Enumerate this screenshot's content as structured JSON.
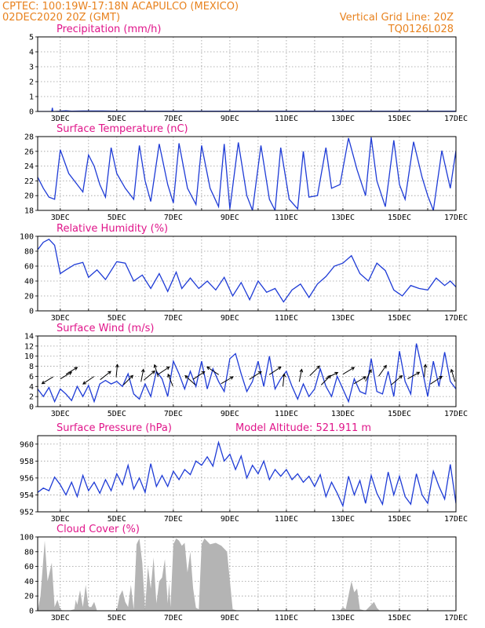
{
  "header": {
    "line1": "CPTEC:   100:19W-17:18N  ACAPULCO (MEXICO)",
    "line2": "02DEC2020 20Z (GMT)",
    "grid_note": "Vertical Grid Line: 20Z",
    "code": "TQ0126L028"
  },
  "colors": {
    "header": "#e8821e",
    "title": "#e0158a",
    "line": "#1e3bd6",
    "fill": "#b4b4b4",
    "arrow": "#000000"
  },
  "x_axis": {
    "labels": [
      "3DEC",
      "5DEC",
      "7DEC",
      "9DEC",
      "11DEC",
      "13DEC",
      "15DEC",
      "17DEC"
    ],
    "label_days": [
      3,
      5,
      7,
      9,
      11,
      13,
      15,
      17
    ],
    "range_days": [
      2.2,
      17
    ]
  },
  "chart_data": [
    {
      "type": "line",
      "title": "Precipitation (mm/h)",
      "ylim": [
        0,
        5
      ],
      "yticks": [
        "0",
        "1",
        "2",
        "3",
        "4",
        "5"
      ],
      "x": [
        2.2,
        2.7,
        2.72,
        2.74,
        2.8,
        3.2,
        3.4,
        3.8,
        4.5,
        5.0,
        6.0,
        7.0,
        8.0,
        9.0,
        10.0,
        11.0,
        12.0,
        13.0,
        14.0,
        15.0,
        16.0,
        17.0
      ],
      "y": [
        0,
        0,
        0.25,
        0,
        0,
        0.05,
        0.02,
        0.03,
        0.03,
        0.02,
        0.02,
        0.02,
        0.02,
        0.02,
        0.02,
        0.02,
        0.02,
        0.02,
        0.02,
        0.02,
        0.02,
        0.02
      ]
    },
    {
      "type": "line",
      "title": "Surface Temperature (nC)",
      "ylim": [
        18,
        28
      ],
      "yticks": [
        "18",
        "20",
        "22",
        "24",
        "26",
        "28"
      ],
      "x": [
        2.2,
        2.4,
        2.6,
        2.8,
        3.0,
        3.3,
        3.6,
        3.8,
        4.0,
        4.2,
        4.4,
        4.6,
        4.8,
        5.0,
        5.3,
        5.6,
        5.8,
        6.0,
        6.2,
        6.5,
        6.8,
        7.0,
        7.2,
        7.5,
        7.8,
        8.0,
        8.3,
        8.6,
        8.8,
        9.0,
        9.3,
        9.6,
        9.8,
        10.1,
        10.4,
        10.6,
        10.8,
        11.1,
        11.4,
        11.6,
        11.8,
        12.1,
        12.4,
        12.6,
        12.9,
        13.2,
        13.5,
        13.8,
        14.0,
        14.2,
        14.5,
        14.8,
        15.0,
        15.2,
        15.5,
        15.8,
        16.0,
        16.2,
        16.5,
        16.8,
        17.0
      ],
      "y": [
        22.5,
        21.0,
        19.8,
        19.5,
        26.2,
        23.0,
        21.5,
        20.5,
        25.5,
        24.0,
        21.5,
        19.8,
        26.5,
        23.0,
        21.0,
        19.5,
        26.8,
        22.0,
        19.2,
        27.0,
        21.5,
        19.0,
        27.1,
        21.0,
        18.8,
        26.8,
        21.0,
        18.5,
        27.0,
        18.2,
        27.2,
        20.0,
        18.0,
        26.8,
        19.5,
        18.0,
        26.5,
        19.5,
        18.2,
        26.0,
        19.8,
        20.0,
        26.5,
        21.0,
        21.5,
        27.8,
        23.5,
        20.0,
        27.9,
        22.0,
        18.5,
        27.5,
        21.5,
        19.5,
        27.3,
        22.5,
        20.0,
        18.0,
        26.1,
        21.0,
        26.1
      ]
    },
    {
      "type": "line",
      "title": "Relative Humidity (%)",
      "ylim": [
        0,
        100
      ],
      "yticks": [
        "0",
        "20",
        "40",
        "60",
        "80",
        "100"
      ],
      "x": [
        2.2,
        2.4,
        2.6,
        2.8,
        3.0,
        3.2,
        3.5,
        3.8,
        4.0,
        4.3,
        4.6,
        5.0,
        5.3,
        5.6,
        5.9,
        6.2,
        6.5,
        6.8,
        7.1,
        7.3,
        7.6,
        7.9,
        8.2,
        8.5,
        8.8,
        9.1,
        9.4,
        9.7,
        10.0,
        10.3,
        10.6,
        10.9,
        11.2,
        11.5,
        11.8,
        12.1,
        12.4,
        12.7,
        13.0,
        13.3,
        13.6,
        13.9,
        14.2,
        14.5,
        14.8,
        15.1,
        15.4,
        15.7,
        16.0,
        16.3,
        16.6,
        16.8,
        17.0
      ],
      "y": [
        82,
        92,
        96,
        88,
        50,
        55,
        62,
        65,
        45,
        55,
        42,
        66,
        64,
        40,
        48,
        30,
        50,
        26,
        52,
        30,
        44,
        30,
        40,
        28,
        45,
        20,
        38,
        15,
        40,
        25,
        30,
        12,
        28,
        36,
        18,
        36,
        46,
        60,
        64,
        74,
        50,
        40,
        64,
        54,
        28,
        20,
        34,
        30,
        28,
        44,
        34,
        40,
        32
      ]
    },
    {
      "type": "line",
      "title": "Surface Wind (m/s)",
      "ylim": [
        0,
        14
      ],
      "yticks": [
        "0",
        "2",
        "4",
        "6",
        "8",
        "10",
        "12",
        "14"
      ],
      "x": [
        2.2,
        2.4,
        2.6,
        2.8,
        3.0,
        3.2,
        3.4,
        3.6,
        3.8,
        4.0,
        4.2,
        4.4,
        4.6,
        4.8,
        5.0,
        5.2,
        5.4,
        5.6,
        5.8,
        6.0,
        6.2,
        6.4,
        6.6,
        6.8,
        7.0,
        7.2,
        7.4,
        7.6,
        7.8,
        8.0,
        8.2,
        8.4,
        8.6,
        8.8,
        9.0,
        9.2,
        9.4,
        9.6,
        9.8,
        10.0,
        10.2,
        10.4,
        10.6,
        10.8,
        11.0,
        11.2,
        11.4,
        11.6,
        11.8,
        12.0,
        12.2,
        12.4,
        12.6,
        12.8,
        13.0,
        13.2,
        13.4,
        13.6,
        13.8,
        14.0,
        14.2,
        14.4,
        14.6,
        14.8,
        15.0,
        15.2,
        15.4,
        15.6,
        15.8,
        16.0,
        16.2,
        16.4,
        16.6,
        16.8,
        17.0
      ],
      "y": [
        3.5,
        2.0,
        3.8,
        1.0,
        3.5,
        2.5,
        1.2,
        4.0,
        2.0,
        4.2,
        1.0,
        4.5,
        5.2,
        4.5,
        5.0,
        4.0,
        6.5,
        2.5,
        1.5,
        4.5,
        2.0,
        7.0,
        5.5,
        2.0,
        9.0,
        6.5,
        3.5,
        7.0,
        4.0,
        9.0,
        3.5,
        7.5,
        5.0,
        3.0,
        9.5,
        10.5,
        6.5,
        3.0,
        5.0,
        9.0,
        4.0,
        10.0,
        3.5,
        5.5,
        7.0,
        4.0,
        1.5,
        4.5,
        2.0,
        3.5,
        7.5,
        4.0,
        2.0,
        6.0,
        3.5,
        1.0,
        5.5,
        3.0,
        2.5,
        9.5,
        3.0,
        2.5,
        7.0,
        2.0,
        11.0,
        5.0,
        2.5,
        12.5,
        7.5,
        2.0,
        9.0,
        4.0,
        10.8,
        5.0,
        3.5
      ]
    },
    {
      "type": "line",
      "title": "Surface Pressure (hPa)",
      "ylim": [
        952,
        961
      ],
      "yticks": [
        "952",
        "954",
        "956",
        "958",
        "960"
      ],
      "x": [
        2.2,
        2.4,
        2.6,
        2.8,
        3.0,
        3.2,
        3.4,
        3.6,
        3.8,
        4.0,
        4.2,
        4.4,
        4.6,
        4.8,
        5.0,
        5.2,
        5.4,
        5.6,
        5.8,
        6.0,
        6.2,
        6.4,
        6.6,
        6.8,
        7.0,
        7.2,
        7.4,
        7.6,
        7.8,
        8.0,
        8.2,
        8.4,
        8.6,
        8.8,
        9.0,
        9.2,
        9.4,
        9.6,
        9.8,
        10.0,
        10.2,
        10.4,
        10.6,
        10.8,
        11.0,
        11.2,
        11.4,
        11.6,
        11.8,
        12.0,
        12.2,
        12.4,
        12.6,
        12.8,
        13.0,
        13.2,
        13.4,
        13.6,
        13.8,
        14.0,
        14.2,
        14.4,
        14.6,
        14.8,
        15.0,
        15.2,
        15.4,
        15.6,
        15.8,
        16.0,
        16.2,
        16.4,
        16.6,
        16.8,
        17.0
      ],
      "y": [
        954.3,
        954.8,
        954.5,
        956.1,
        955.2,
        954.0,
        955.5,
        953.8,
        956.3,
        954.5,
        955.5,
        954.2,
        955.8,
        954.5,
        956.5,
        955.2,
        957.5,
        954.7,
        956.0,
        954.3,
        957.7,
        955.0,
        956.3,
        955.0,
        956.8,
        955.8,
        957.0,
        956.4,
        958.0,
        957.5,
        958.5,
        957.4,
        960.2,
        958.0,
        958.8,
        957.0,
        958.6,
        956.0,
        957.5,
        956.5,
        958.0,
        955.8,
        957.0,
        956.2,
        957.0,
        955.8,
        956.5,
        955.5,
        956.2,
        955.0,
        956.4,
        953.8,
        955.5,
        954.2,
        952.7,
        956.2,
        954.0,
        955.7,
        953.0,
        956.3,
        954.2,
        952.9,
        956.7,
        954.0,
        956.2,
        953.8,
        952.9,
        956.5,
        954.0,
        953.0,
        956.8,
        955.0,
        953.5,
        957.6,
        953.0
      ]
    },
    {
      "type": "area",
      "title": "Cloud Cover (%)",
      "ylim": [
        0,
        100
      ],
      "yticks": [
        "0",
        "20",
        "40",
        "60",
        "80",
        "100"
      ],
      "x": [
        2.2,
        2.3,
        2.45,
        2.55,
        2.7,
        2.8,
        2.9,
        3.0,
        3.1,
        3.3,
        3.5,
        3.55,
        3.6,
        3.7,
        3.8,
        3.9,
        4.0,
        4.1,
        4.2,
        4.3,
        4.4,
        4.6,
        4.8,
        5.0,
        5.1,
        5.2,
        5.3,
        5.4,
        5.5,
        5.6,
        5.7,
        5.8,
        5.9,
        6.0,
        6.1,
        6.2,
        6.3,
        6.4,
        6.5,
        6.6,
        6.7,
        6.8,
        6.85,
        6.9,
        7.0,
        7.1,
        7.2,
        7.3,
        7.4,
        7.5,
        7.6,
        7.7,
        7.8,
        7.9,
        8.0,
        8.1,
        8.3,
        8.5,
        8.7,
        8.9,
        9.1,
        9.3,
        9.5,
        12.9,
        13.0,
        13.1,
        13.3,
        13.4,
        13.5,
        13.6,
        13.8,
        14.0,
        14.1,
        14.2,
        14.3,
        14.5,
        17.0
      ],
      "y": [
        0,
        20,
        95,
        40,
        65,
        5,
        15,
        2,
        0,
        0,
        2,
        15,
        8,
        28,
        5,
        35,
        5,
        5,
        12,
        0,
        0,
        0,
        0,
        0,
        20,
        28,
        12,
        5,
        35,
        2,
        90,
        98,
        65,
        2,
        60,
        30,
        72,
        10,
        40,
        45,
        70,
        10,
        38,
        5,
        90,
        98,
        95,
        88,
        92,
        52,
        80,
        30,
        4,
        2,
        90,
        98,
        90,
        92,
        88,
        80,
        2,
        0,
        0,
        0,
        5,
        2,
        40,
        25,
        30,
        2,
        0,
        8,
        12,
        4,
        0,
        0,
        0
      ]
    }
  ],
  "model_altitude": "Model Altitude: 521.911 m",
  "wind_arrows": [
    {
      "t": 2.55,
      "dx": -1,
      "dy": -0.6
    },
    {
      "t": 3.2,
      "dx": 1,
      "dy": 0.6
    },
    {
      "t": 3.4,
      "dx": 1,
      "dy": 0.6
    },
    {
      "t": 4.0,
      "dx": -1,
      "dy": -0.7
    },
    {
      "t": 4.6,
      "dx": 1,
      "dy": 0.8
    },
    {
      "t": 5.0,
      "dx": 0.1,
      "dy": 1
    },
    {
      "t": 5.4,
      "dx": 0.9,
      "dy": 0.9
    },
    {
      "t": 5.9,
      "dx": 0.2,
      "dy": 1
    },
    {
      "t": 6.4,
      "dx": -0.3,
      "dy": 1
    },
    {
      "t": 6.9,
      "dx": -0.4,
      "dy": 1
    },
    {
      "t": 6.15,
      "dx": 1.2,
      "dy": 1
    },
    {
      "t": 6.65,
      "dx": 1.2,
      "dy": 0.8
    },
    {
      "t": 7.6,
      "dx": -1,
      "dy": 0.9
    },
    {
      "t": 7.9,
      "dx": 1.2,
      "dy": 0.8
    },
    {
      "t": 8.4,
      "dx": -1.2,
      "dy": 0.8
    },
    {
      "t": 8.9,
      "dx": 1.2,
      "dy": 0.7
    },
    {
      "t": 9.9,
      "dx": 1.4,
      "dy": 0.9
    },
    {
      "t": 10.6,
      "dx": 1.2,
      "dy": 0.8
    },
    {
      "t": 10.9,
      "dx": 0.1,
      "dy": 1
    },
    {
      "t": 11.5,
      "dx": 0.2,
      "dy": 1
    },
    {
      "t": 12.0,
      "dx": 1,
      "dy": 1
    },
    {
      "t": 12.4,
      "dx": 0.9,
      "dy": 0.9
    },
    {
      "t": 12.6,
      "dx": 1.2,
      "dy": 0.6
    },
    {
      "t": 13.2,
      "dx": 1,
      "dy": 0.6
    },
    {
      "t": 13.6,
      "dx": 1.2,
      "dy": 0.7
    },
    {
      "t": 13.9,
      "dx": 0.5,
      "dy": 1
    },
    {
      "t": 14.4,
      "dx": 0.7,
      "dy": 1
    },
    {
      "t": 14.9,
      "dx": 1.2,
      "dy": 1
    },
    {
      "t": 15.5,
      "dx": 1.1,
      "dy": 0.6
    },
    {
      "t": 15.9,
      "dx": 0.1,
      "dy": 1
    },
    {
      "t": 16.3,
      "dx": 1.2,
      "dy": 0.8
    },
    {
      "t": 16.9,
      "dx": -0.3,
      "dy": 1
    }
  ]
}
